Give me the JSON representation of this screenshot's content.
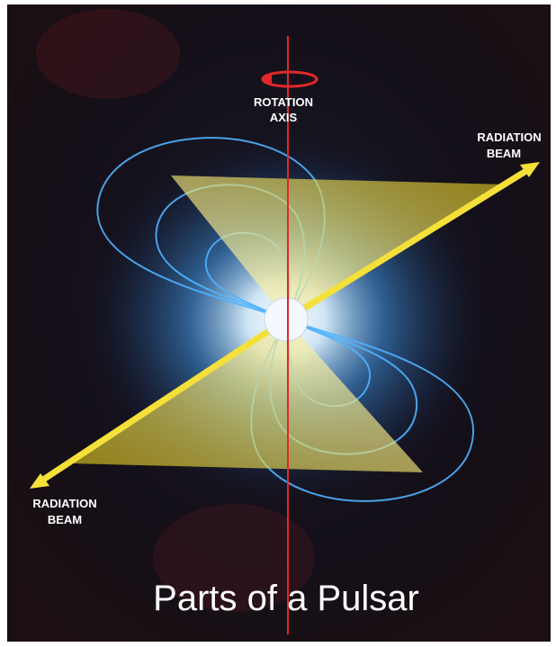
{
  "title": "Parts of a Pulsar",
  "labels": [
    {
      "lines": [
        "ROTATION",
        "AXIS"
      ]
    },
    {
      "lines": [
        "RADIATION",
        "BEAM"
      ]
    },
    {
      "lines": [
        "RADIATION",
        "BEAM"
      ]
    }
  ]
}
